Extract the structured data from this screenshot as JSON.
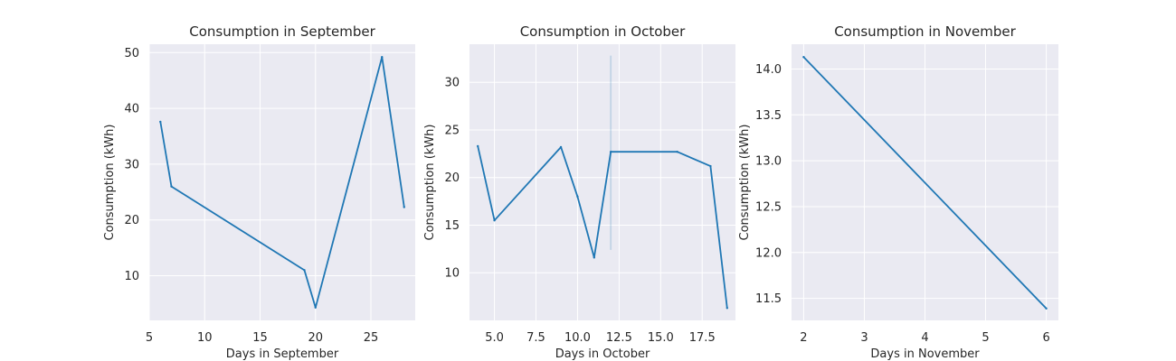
{
  "chart_data": [
    {
      "type": "line",
      "title": "Consumption in September",
      "xlabel": "Days in September",
      "ylabel": "Consumption (kWh)",
      "xlim": [
        5,
        29
      ],
      "ylim": [
        2,
        51.5
      ],
      "xticks": [
        5,
        10,
        15,
        20,
        25
      ],
      "xtick_labels": [
        "5",
        "10",
        "15",
        "20",
        "25"
      ],
      "yticks": [
        10,
        20,
        30,
        40,
        50
      ],
      "ytick_labels": [
        "10",
        "20",
        "30",
        "40",
        "50"
      ],
      "grid": true,
      "series": [
        {
          "x": [
            6,
            7,
            19,
            20,
            26,
            28
          ],
          "y": [
            37.6,
            26.0,
            11.0,
            4.3,
            49.2,
            22.3
          ]
        }
      ],
      "vlines": []
    },
    {
      "type": "line",
      "title": "Consumption in October",
      "xlabel": "Days in October",
      "ylabel": "Consumption (kWh)",
      "xlim": [
        3.5,
        19.5
      ],
      "ylim": [
        5,
        34
      ],
      "xticks": [
        5,
        7.5,
        10,
        12.5,
        15,
        17.5
      ],
      "xtick_labels": [
        "5.0",
        "7.5",
        "10.0",
        "12.5",
        "15.0",
        "17.5"
      ],
      "yticks": [
        10,
        15,
        20,
        25,
        30
      ],
      "ytick_labels": [
        "10",
        "15",
        "20",
        "25",
        "30"
      ],
      "grid": true,
      "series": [
        {
          "x": [
            4,
            5,
            9,
            10,
            11,
            12,
            16,
            18,
            19
          ],
          "y": [
            23.3,
            15.5,
            23.2,
            18.0,
            11.6,
            22.7,
            22.7,
            21.2,
            6.3
          ]
        }
      ],
      "vlines": [
        {
          "x": 12,
          "ymin": 12.4,
          "ymax": 32.8
        }
      ]
    },
    {
      "type": "line",
      "title": "Consumption in November",
      "xlabel": "Days in November",
      "ylabel": "Consumption (kWh)",
      "xlim": [
        1.8,
        6.2
      ],
      "ylim": [
        11.26,
        14.27
      ],
      "xticks": [
        2,
        3,
        4,
        5,
        6
      ],
      "xtick_labels": [
        "2",
        "3",
        "4",
        "5",
        "6"
      ],
      "yticks": [
        11.5,
        12.0,
        12.5,
        13.0,
        13.5,
        14.0
      ],
      "ytick_labels": [
        "11.5",
        "12.0",
        "12.5",
        "13.0",
        "13.5",
        "14.0"
      ],
      "grid": true,
      "series": [
        {
          "x": [
            2,
            6
          ],
          "y": [
            14.13,
            11.39
          ]
        }
      ],
      "vlines": []
    }
  ],
  "colors": {
    "line": "#1f77b4",
    "plot_background": "#eaeaf2",
    "grid": "#ffffff"
  }
}
